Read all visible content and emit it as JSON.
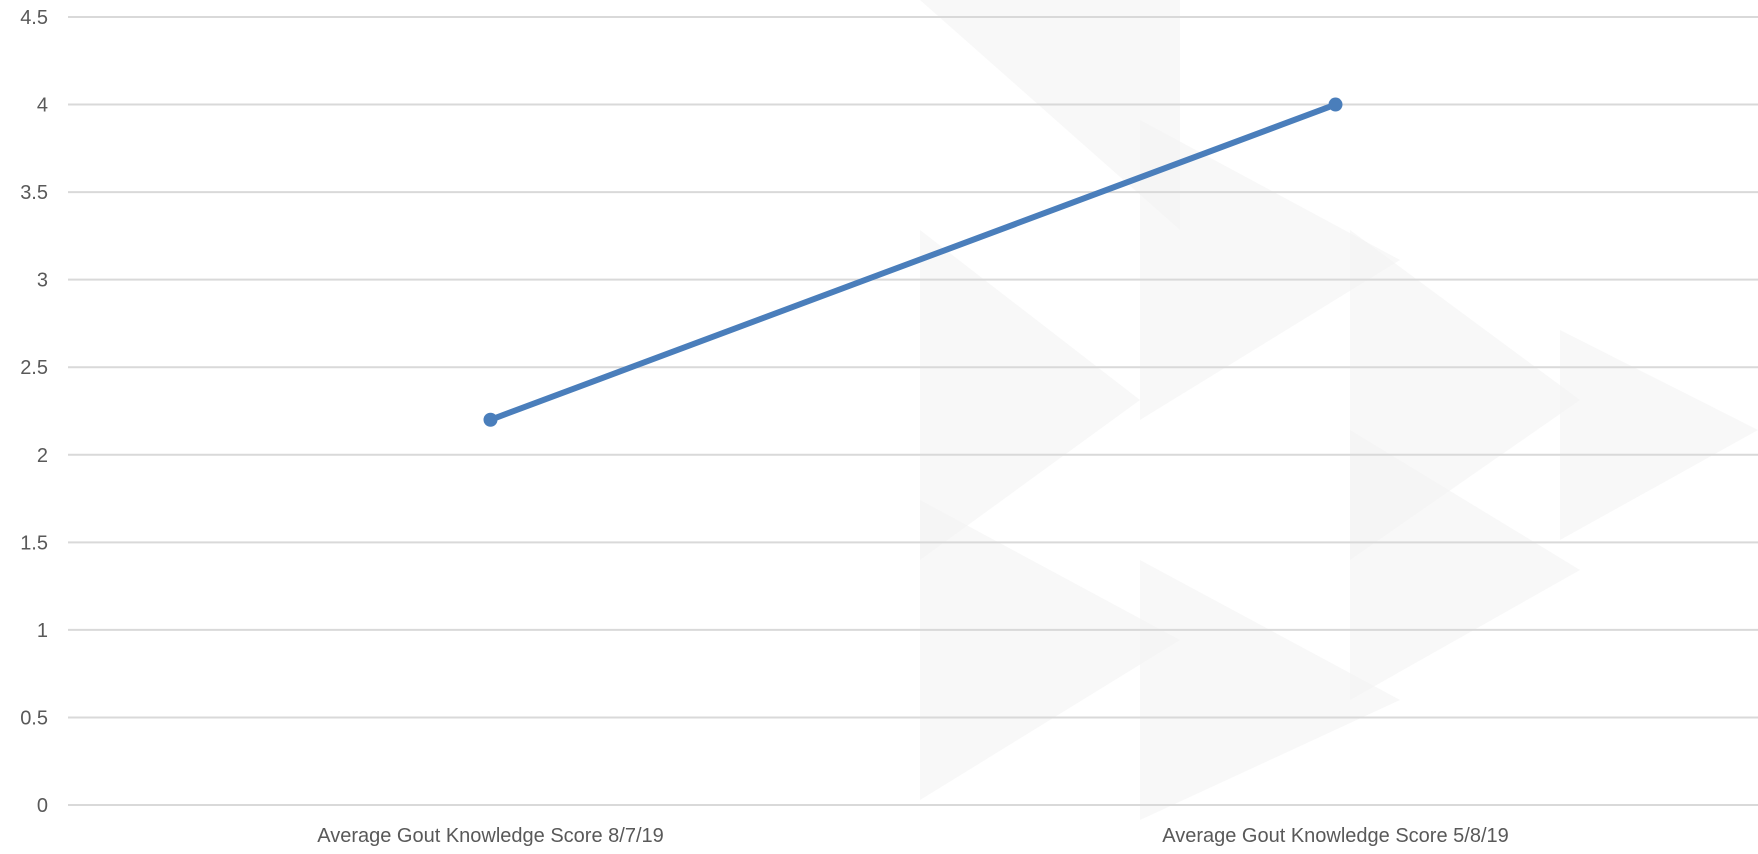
{
  "chart_data": {
    "type": "line",
    "title": "",
    "xlabel": "",
    "ylabel": "",
    "categories": [
      "Average Gout Knowledge Score 8/7/19",
      "Average Gout Knowledge Score 5/8/19"
    ],
    "series": [
      {
        "values": [
          2.2,
          4.0
        ],
        "color": "#4a7ebb"
      }
    ],
    "ylim": [
      0,
      4.5
    ],
    "yticks": [
      0,
      0.5,
      1,
      1.5,
      2,
      2.5,
      3,
      3.5,
      4,
      4.5
    ],
    "ytick_labels": [
      "0",
      "0.5",
      "1",
      "1.5",
      "2",
      "2.5",
      "3",
      "3.5",
      "4",
      "4.5"
    ],
    "grid": true,
    "legend": "none",
    "colors": {
      "gridline": "#d9d9d9",
      "watermark": "#f2f2f2",
      "axis_text": "#595959"
    }
  }
}
